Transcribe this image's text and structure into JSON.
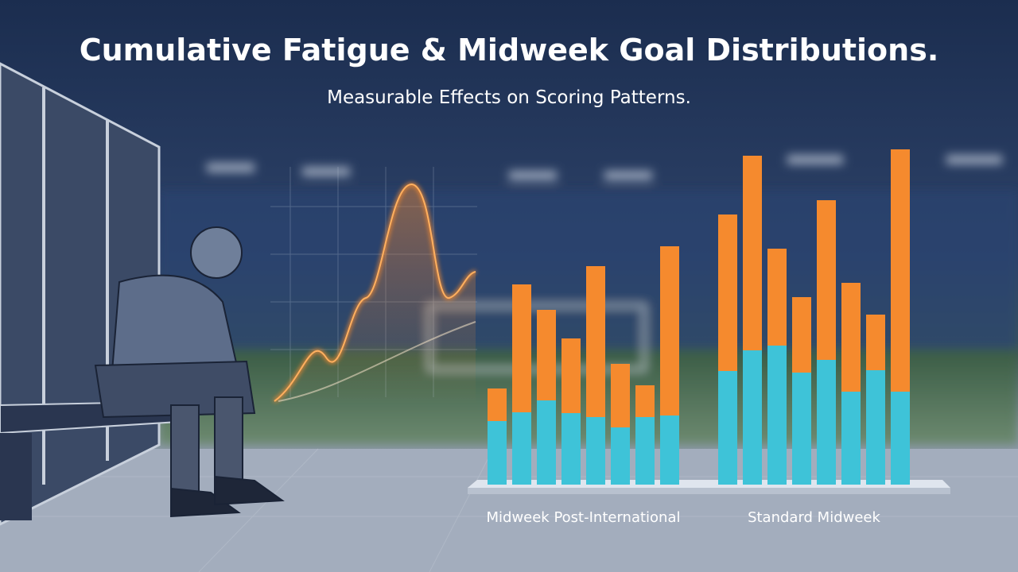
{
  "chart_data": {
    "type": "bar",
    "stacked": true,
    "title": "Cumulative Fatigue & Midweek Goal Distributions.",
    "subtitle": "Measurable Effects on Scoring Patterns.",
    "groups": [
      {
        "label": "Midweek Post-International",
        "series": [
          {
            "color": "#3ec3d8",
            "values": [
              80,
              91,
              106,
              90,
              85,
              72,
              85,
              87
            ]
          },
          {
            "color": "#f58a2e",
            "values": [
              41,
              161,
              114,
              94,
              190,
              80,
              40,
              213
            ]
          }
        ]
      },
      {
        "label": "Standard Midweek",
        "series": [
          {
            "color": "#3ec3d8",
            "values": [
              143,
              169,
              175,
              141,
              157,
              117,
              144,
              117
            ]
          },
          {
            "color": "#f58a2e",
            "values": [
              197,
              245,
              122,
              95,
              201,
              137,
              70,
              305
            ]
          }
        ]
      }
    ]
  }
}
